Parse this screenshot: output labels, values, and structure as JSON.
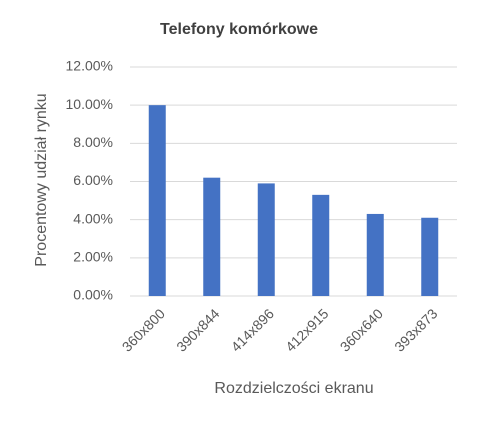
{
  "chart_data": {
    "type": "bar",
    "title": "Telefony komórkowe",
    "x_label": "Rozdzielczości ekranu",
    "y_label": "Procentowy udział rynku",
    "categories": [
      "360x800",
      "390x844",
      "414x896",
      "412x915",
      "360x640",
      "393x873"
    ],
    "values": [
      10.0,
      6.2,
      5.9,
      5.3,
      4.3,
      4.1
    ],
    "color": "#4472c4",
    "ylim": [
      0,
      12
    ],
    "yticks": [
      {
        "value": 0,
        "label": "0.00%"
      },
      {
        "value": 2,
        "label": "2.00%"
      },
      {
        "value": 4,
        "label": "4.00%"
      },
      {
        "value": 6,
        "label": "6.00%"
      },
      {
        "value": 8,
        "label": "8.00%"
      },
      {
        "value": 10,
        "label": "10.00%"
      },
      {
        "value": 12,
        "label": "12.00%"
      }
    ],
    "grid": true
  }
}
